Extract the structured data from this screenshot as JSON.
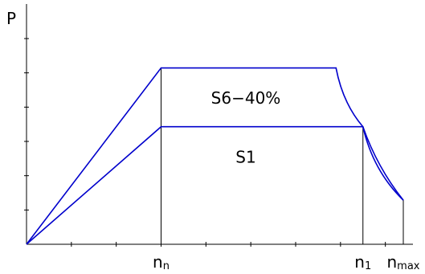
{
  "chart_data": {
    "type": "line",
    "ylabel": "P",
    "xlabel": "",
    "title": "",
    "x_ticks": [
      {
        "x": 1.0,
        "label": "n",
        "sub": "n"
      },
      {
        "x": 2.5,
        "label": "n",
        "sub": "1"
      },
      {
        "x": 2.8,
        "label": "n",
        "sub": "max"
      }
    ],
    "xlim": [
      0,
      2.8
    ],
    "ylim": [
      0,
      7
    ],
    "y_minor_ticks": 7,
    "x_minor_ticks": 14,
    "series": [
      {
        "name": "S6-40%",
        "x": [
          0,
          1.0,
          2.3,
          2.5,
          2.8
        ],
        "y": [
          0,
          6,
          6,
          4,
          1.5
        ]
      },
      {
        "name": "S1",
        "x": [
          0,
          1.0,
          2.5,
          2.8
        ],
        "y": [
          0,
          4,
          4,
          1.5
        ]
      }
    ],
    "vertical_lines": [
      1.0,
      2.5,
      2.8
    ],
    "region_labels": [
      {
        "text": "S6−40%",
        "x": 1.6,
        "y": 5.0
      },
      {
        "text": "S1",
        "x": 1.6,
        "y": 3.0
      }
    ],
    "colors": {
      "curve": "#0000cc",
      "axis": "#000000"
    }
  }
}
